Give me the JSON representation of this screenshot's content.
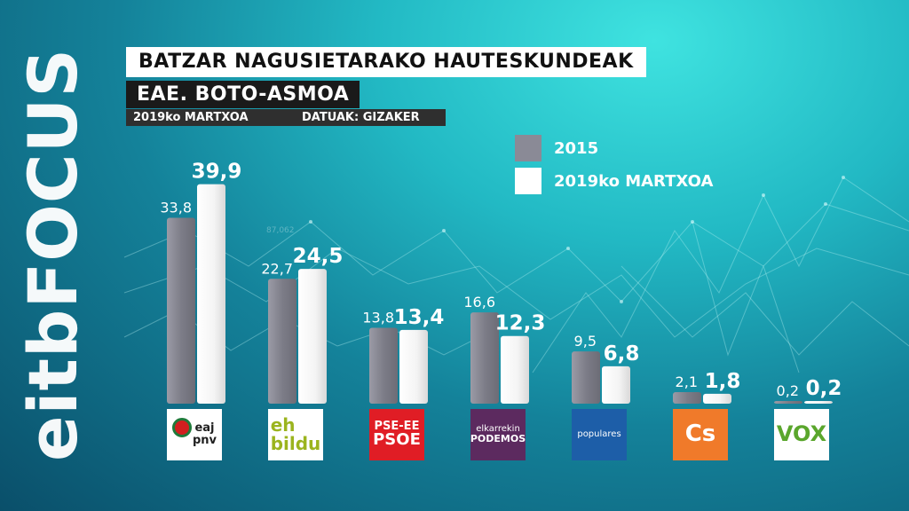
{
  "brand": {
    "text": "eitbFOCUS"
  },
  "header": {
    "title": "BATZAR NAGUSIETARAKO HAUTESKUNDEAK",
    "subtitle": "EAE. BOTO-ASMOA",
    "date": "2019ko MARTXOA",
    "source": "DATUAK: GIZAKER"
  },
  "background_number": "87,062",
  "legend": [
    {
      "label": "2015",
      "color": "#8a8a96"
    },
    {
      "label": "2019ko MARTXOA",
      "color": "#ffffff"
    }
  ],
  "logos": [
    {
      "lines": [
        "eaj",
        "pnv"
      ],
      "bg": "#ffffff",
      "fg": "#1f1f1f",
      "accent": "#d21f1f"
    },
    {
      "lines": [
        "eh",
        "bildu"
      ],
      "bg": "#ffffff",
      "fg": "#9bb41e"
    },
    {
      "lines": [
        "PSE-EE",
        "PSOE"
      ],
      "bg": "#e01d25",
      "fg": "#ffffff"
    },
    {
      "lines": [
        "elkarrekin",
        "PODEMOS"
      ],
      "bg": "#5c2a5f",
      "fg": "#ffffff"
    },
    {
      "lines": [
        "populares"
      ],
      "bg": "#1d5ea8",
      "fg": "#ffffff"
    },
    {
      "lines": [
        "Cs"
      ],
      "bg": "#f07a2a",
      "fg": "#ffffff"
    },
    {
      "lines": [
        "VOX"
      ],
      "bg": "#ffffff",
      "fg": "#5aa62c"
    }
  ],
  "chart_data": {
    "type": "bar",
    "title": "BATZAR NAGUSIETARAKO HAUTESKUNDEAK",
    "subtitle": "EAE. BOTO-ASMOA",
    "categories": [
      "eaj pnv",
      "eh bildu",
      "PSE-EE PSOE",
      "elkarrekin PODEMOS",
      "populares",
      "Cs",
      "VOX"
    ],
    "series": [
      {
        "name": "2015",
        "values": [
          33.8,
          22.7,
          13.8,
          16.6,
          9.5,
          2.1,
          0.2
        ],
        "labels": [
          "33,8",
          "22,7",
          "13,8",
          "16,6",
          "9,5",
          "2,1",
          "0,2"
        ]
      },
      {
        "name": "2019ko MARTXOA",
        "values": [
          39.9,
          24.5,
          13.4,
          12.3,
          6.8,
          1.8,
          0.2
        ],
        "labels": [
          "39,9",
          "24,5",
          "13,4",
          "12,3",
          "6,8",
          "1,8",
          "0,2"
        ]
      }
    ],
    "ylim": [
      0,
      45
    ],
    "grid": false,
    "legend_position": "top-right"
  }
}
